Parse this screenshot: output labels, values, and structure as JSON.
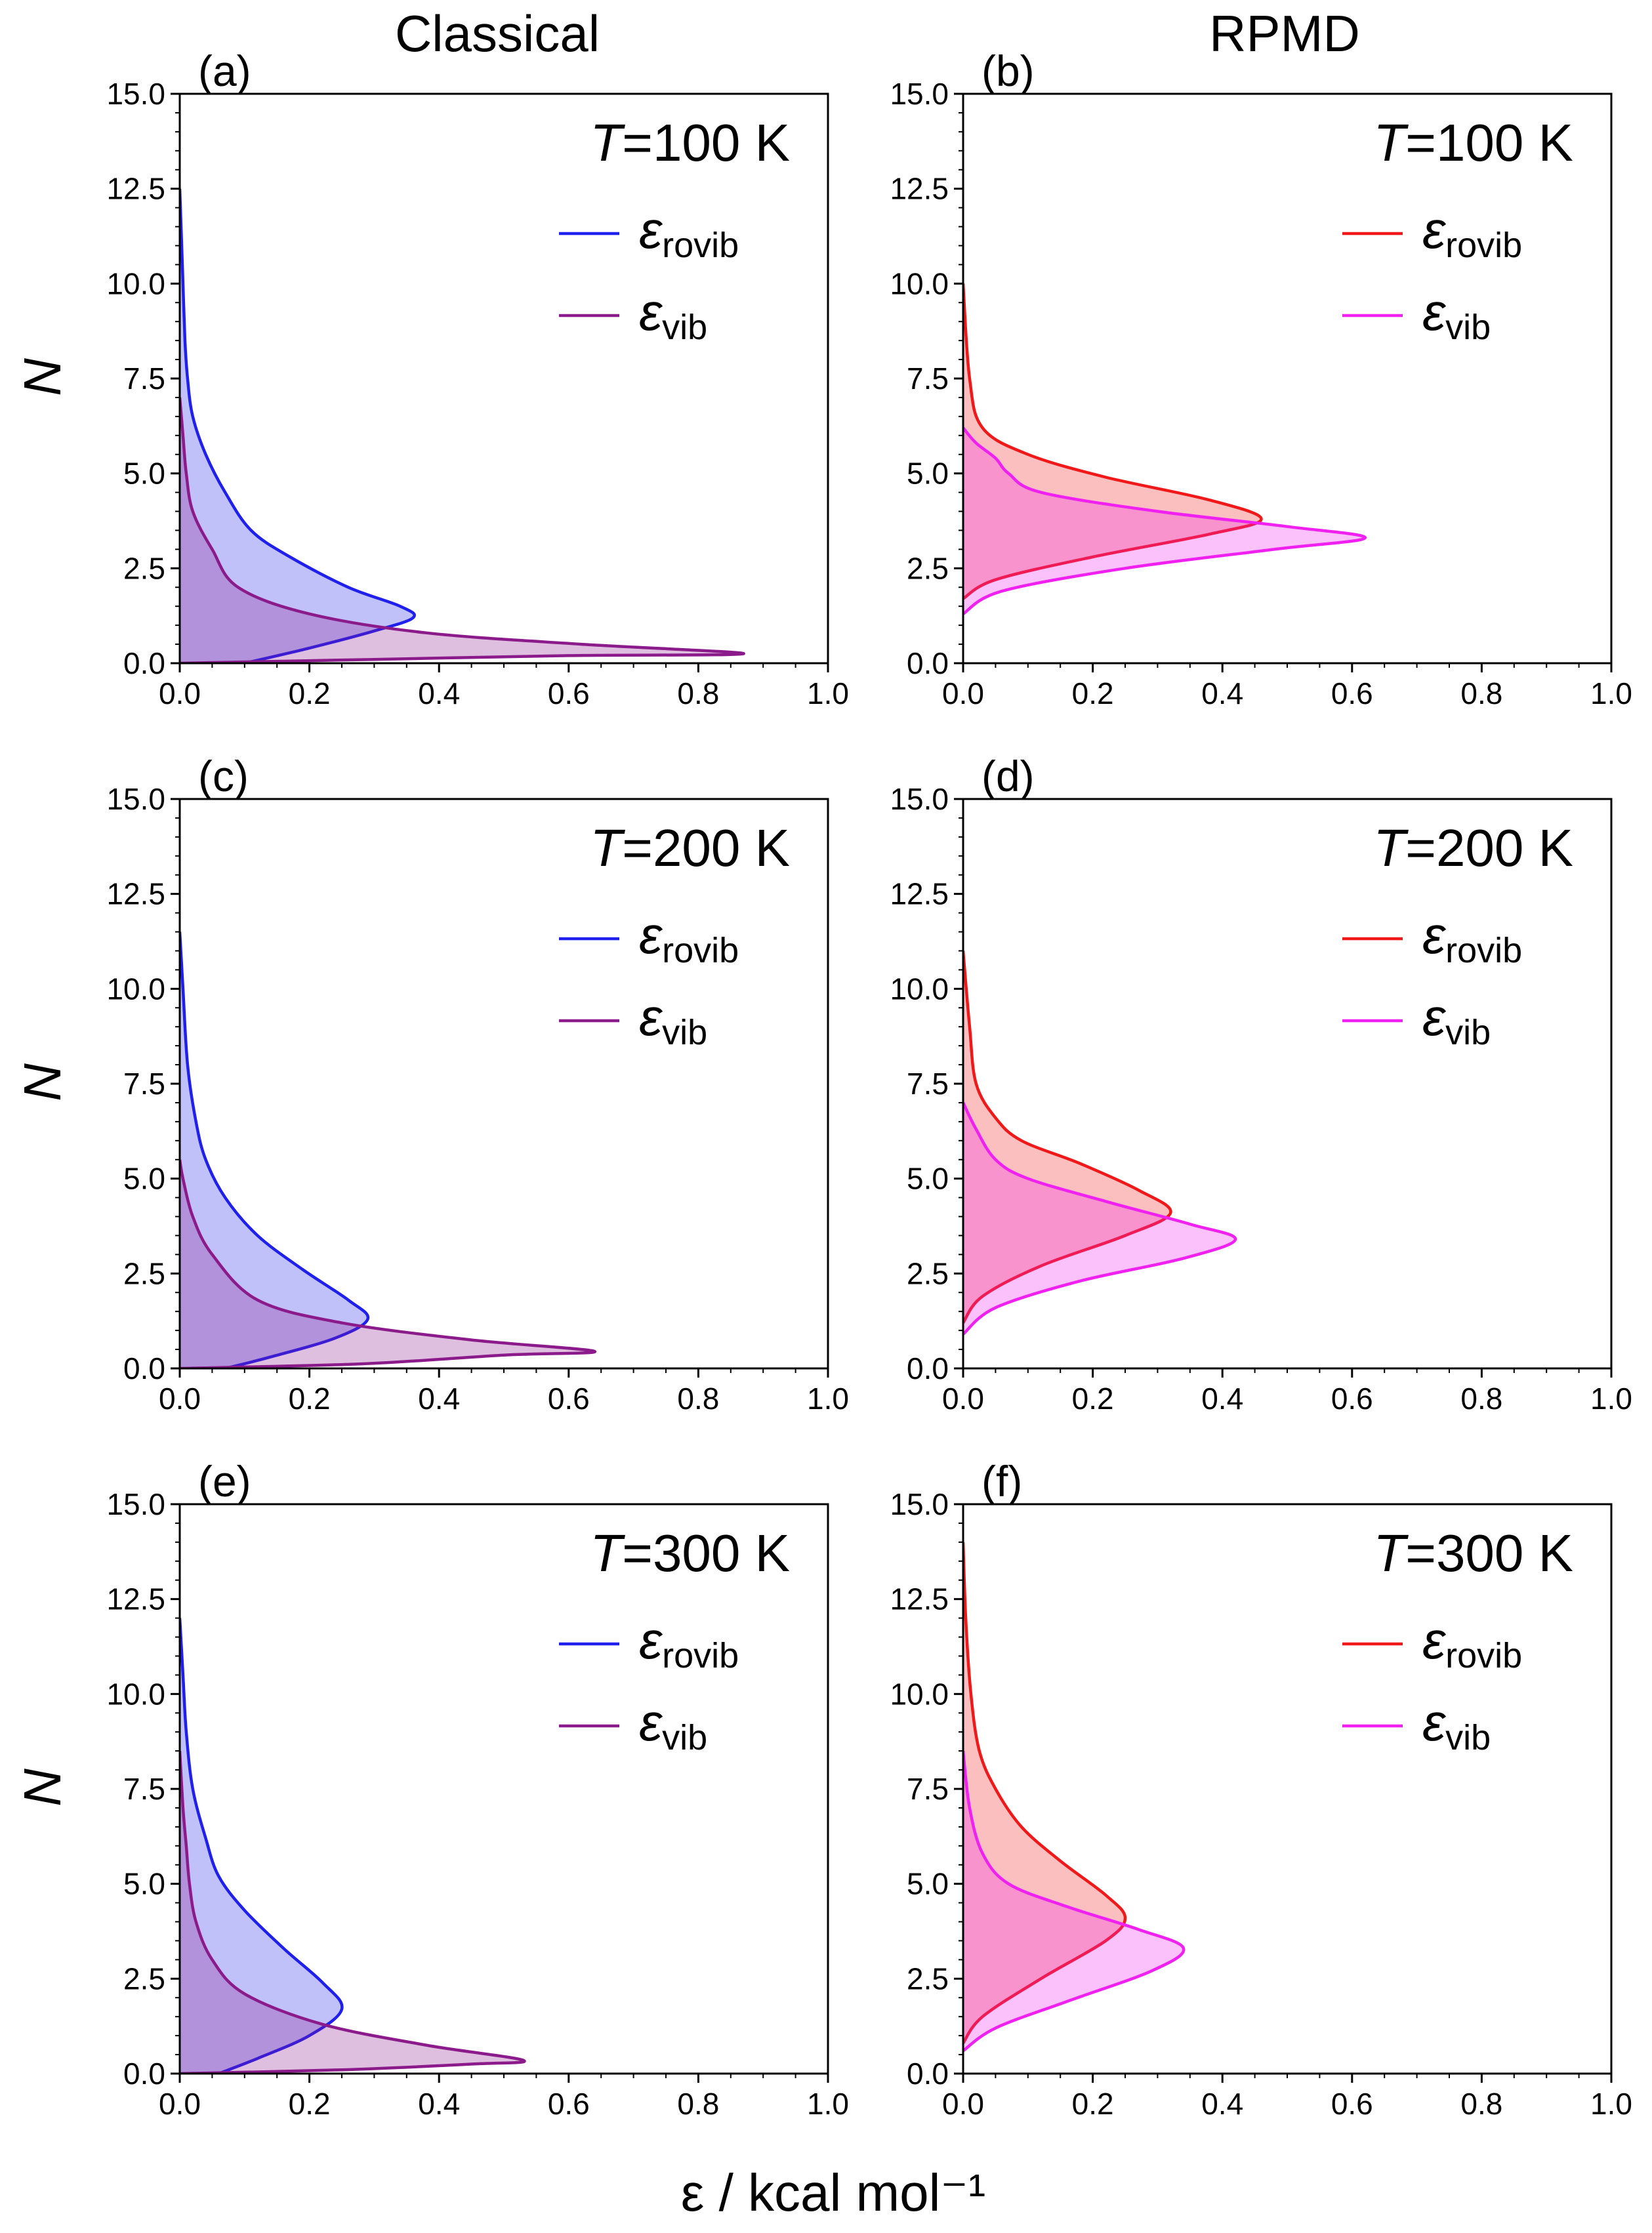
{
  "figure": {
    "col_titles": [
      "Classical",
      "RPMD"
    ],
    "xlabel": "ε / kcal mol⁻¹",
    "ylabel": "N"
  },
  "colors": {
    "classical_rovib": "#1f1fee",
    "classical_vib": "#8b1a8b",
    "rpmd_rovib": "#f01818",
    "rpmd_vib": "#f020f0"
  },
  "chart_data": [
    {
      "type": "area",
      "label": "(a)",
      "temperature": "T=100 K",
      "xlim": [
        0,
        1.0
      ],
      "ylim": [
        0,
        15.0
      ],
      "xticks": [
        "0.0",
        "0.2",
        "0.4",
        "0.6",
        "0.8",
        "1.0"
      ],
      "yticks": [
        "0.0",
        "2.5",
        "5.0",
        "7.5",
        "10.0",
        "12.5",
        "15.0"
      ],
      "legend": [
        {
          "symbol": "ε",
          "sub": "rovib"
        },
        {
          "symbol": "ε",
          "sub": "vib"
        }
      ],
      "series": [
        {
          "name": "ε_rovib",
          "color": "classical_rovib",
          "points": [
            [
              0.1,
              0
            ],
            [
              0.2,
              0.4
            ],
            [
              0.3,
              0.85
            ],
            [
              0.36,
              1.2
            ],
            [
              0.34,
              1.5
            ],
            [
              0.26,
              2.0
            ],
            [
              0.17,
              2.8
            ],
            [
              0.11,
              3.5
            ],
            [
              0.07,
              4.5
            ],
            [
              0.04,
              5.5
            ],
            [
              0.02,
              6.5
            ],
            [
              0.012,
              7.5
            ],
            [
              0.008,
              8.5
            ],
            [
              0.005,
              10
            ],
            [
              0.002,
              11.5
            ],
            [
              0,
              12.5
            ]
          ]
        },
        {
          "name": "ε_vib",
          "color": "classical_vib",
          "points": [
            [
              0,
              0
            ],
            [
              0.3,
              0.1
            ],
            [
              0.6,
              0.2
            ],
            [
              0.87,
              0.25
            ],
            [
              0.62,
              0.5
            ],
            [
              0.38,
              0.8
            ],
            [
              0.2,
              1.3
            ],
            [
              0.09,
              2.0
            ],
            [
              0.05,
              3.0
            ],
            [
              0.02,
              4.0
            ],
            [
              0.01,
              5.0
            ],
            [
              0.005,
              6
            ],
            [
              0,
              7
            ]
          ]
        }
      ]
    },
    {
      "type": "area",
      "label": "(b)",
      "temperature": "T=100 K",
      "xlim": [
        0,
        1.0
      ],
      "ylim": [
        0,
        15.0
      ],
      "xticks": [
        "0.0",
        "0.2",
        "0.4",
        "0.6",
        "0.8",
        "1.0"
      ],
      "yticks": [
        "0.0",
        "2.5",
        "5.0",
        "7.5",
        "10.0",
        "12.5",
        "15.0"
      ],
      "legend": [
        {
          "symbol": "ε",
          "sub": "rovib"
        },
        {
          "symbol": "ε",
          "sub": "vib"
        }
      ],
      "series": [
        {
          "name": "ε_rovib",
          "color": "rpmd_rovib",
          "points": [
            [
              0,
              1.7
            ],
            [
              0.05,
              2.2
            ],
            [
              0.2,
              2.8
            ],
            [
              0.38,
              3.4
            ],
            [
              0.46,
              3.8
            ],
            [
              0.38,
              4.3
            ],
            [
              0.22,
              4.9
            ],
            [
              0.1,
              5.5
            ],
            [
              0.03,
              6.2
            ],
            [
              0.01,
              7.5
            ],
            [
              0,
              10
            ]
          ]
        },
        {
          "name": "ε_vib",
          "color": "rpmd_vib",
          "points": [
            [
              0,
              1.3
            ],
            [
              0.06,
              1.9
            ],
            [
              0.25,
              2.5
            ],
            [
              0.48,
              3.0
            ],
            [
              0.62,
              3.3
            ],
            [
              0.5,
              3.6
            ],
            [
              0.3,
              4.0
            ],
            [
              0.12,
              4.5
            ],
            [
              0.07,
              5.0
            ],
            [
              0.05,
              5.4
            ],
            [
              0.02,
              5.8
            ],
            [
              0,
              6.2
            ]
          ]
        }
      ]
    },
    {
      "type": "area",
      "label": "(c)",
      "temperature": "T=200 K",
      "xlim": [
        0,
        1.0
      ],
      "ylim": [
        0,
        15.0
      ],
      "xticks": [
        "0.0",
        "0.2",
        "0.4",
        "0.6",
        "0.8",
        "1.0"
      ],
      "yticks": [
        "0.0",
        "2.5",
        "5.0",
        "7.5",
        "10.0",
        "12.5",
        "15.0"
      ],
      "legend": [
        {
          "symbol": "ε",
          "sub": "rovib"
        },
        {
          "symbol": "ε",
          "sub": "vib"
        }
      ],
      "series": [
        {
          "name": "ε_rovib",
          "color": "classical_rovib",
          "points": [
            [
              0.07,
              0
            ],
            [
              0.14,
              0.3
            ],
            [
              0.24,
              0.8
            ],
            [
              0.29,
              1.3
            ],
            [
              0.26,
              1.8
            ],
            [
              0.19,
              2.6
            ],
            [
              0.12,
              3.5
            ],
            [
              0.07,
              4.5
            ],
            [
              0.04,
              5.5
            ],
            [
              0.025,
              6.5
            ],
            [
              0.012,
              8
            ],
            [
              0.005,
              10
            ],
            [
              0,
              11.5
            ]
          ]
        },
        {
          "name": "ε_vib",
          "color": "classical_vib",
          "points": [
            [
              0,
              0
            ],
            [
              0.28,
              0.12
            ],
            [
              0.5,
              0.35
            ],
            [
              0.64,
              0.45
            ],
            [
              0.45,
              0.75
            ],
            [
              0.25,
              1.2
            ],
            [
              0.12,
              1.8
            ],
            [
              0.05,
              3.0
            ],
            [
              0.02,
              4.0
            ],
            [
              0.005,
              5.0
            ],
            [
              0,
              5.5
            ]
          ]
        }
      ]
    },
    {
      "type": "area",
      "label": "(d)",
      "temperature": "T=200 K",
      "xlim": [
        0,
        1.0
      ],
      "ylim": [
        0,
        15.0
      ],
      "xticks": [
        "0.0",
        "0.2",
        "0.4",
        "0.6",
        "0.8",
        "1.0"
      ],
      "yticks": [
        "0.0",
        "2.5",
        "5.0",
        "7.5",
        "10.0",
        "12.5",
        "15.0"
      ],
      "legend": [
        {
          "symbol": "ε",
          "sub": "rovib"
        },
        {
          "symbol": "ε",
          "sub": "vib"
        }
      ],
      "series": [
        {
          "name": "ε_rovib",
          "color": "rpmd_rovib",
          "points": [
            [
              0,
              1.2
            ],
            [
              0.03,
              1.9
            ],
            [
              0.12,
              2.7
            ],
            [
              0.25,
              3.5
            ],
            [
              0.32,
              4.1
            ],
            [
              0.27,
              4.7
            ],
            [
              0.18,
              5.4
            ],
            [
              0.09,
              6.0
            ],
            [
              0.05,
              6.6
            ],
            [
              0.02,
              7.5
            ],
            [
              0.01,
              9
            ],
            [
              0,
              11
            ]
          ]
        },
        {
          "name": "ε_vib",
          "color": "rpmd_vib",
          "points": [
            [
              0,
              0.9
            ],
            [
              0.05,
              1.6
            ],
            [
              0.18,
              2.3
            ],
            [
              0.34,
              2.9
            ],
            [
              0.42,
              3.4
            ],
            [
              0.35,
              3.8
            ],
            [
              0.22,
              4.4
            ],
            [
              0.1,
              5.0
            ],
            [
              0.05,
              5.5
            ],
            [
              0.02,
              6.3
            ],
            [
              0,
              7.0
            ]
          ]
        }
      ]
    },
    {
      "type": "area",
      "label": "(e)",
      "temperature": "T=300 K",
      "xlim": [
        0,
        1.0
      ],
      "ylim": [
        0,
        15.0
      ],
      "xticks": [
        "0.0",
        "0.2",
        "0.4",
        "0.6",
        "0.8",
        "1.0"
      ],
      "yticks": [
        "0.0",
        "2.5",
        "5.0",
        "7.5",
        "10.0",
        "12.5",
        "15.0"
      ],
      "legend": [
        {
          "symbol": "ε",
          "sub": "rovib"
        },
        {
          "symbol": "ε",
          "sub": "vib"
        }
      ],
      "series": [
        {
          "name": "ε_rovib",
          "color": "classical_rovib",
          "points": [
            [
              0.06,
              0
            ],
            [
              0.12,
              0.4
            ],
            [
              0.2,
              1.0
            ],
            [
              0.25,
              1.7
            ],
            [
              0.22,
              2.4
            ],
            [
              0.16,
              3.3
            ],
            [
              0.1,
              4.3
            ],
            [
              0.06,
              5.2
            ],
            [
              0.04,
              6.2
            ],
            [
              0.02,
              7.5
            ],
            [
              0.01,
              9
            ],
            [
              0.005,
              10.5
            ],
            [
              0,
              12
            ]
          ]
        },
        {
          "name": "ε_vib",
          "color": "classical_vib",
          "points": [
            [
              0,
              0
            ],
            [
              0.25,
              0.1
            ],
            [
              0.45,
              0.25
            ],
            [
              0.53,
              0.35
            ],
            [
              0.38,
              0.75
            ],
            [
              0.22,
              1.3
            ],
            [
              0.1,
              2.1
            ],
            [
              0.05,
              3.0
            ],
            [
              0.025,
              4.0
            ],
            [
              0.015,
              5.0
            ],
            [
              0.01,
              6.0
            ],
            [
              0.005,
              7.0
            ],
            [
              0,
              8.5
            ]
          ]
        }
      ]
    },
    {
      "type": "area",
      "label": "(f)",
      "temperature": "T=300 K",
      "xlim": [
        0,
        1.0
      ],
      "ylim": [
        0,
        15.0
      ],
      "xticks": [
        "0.0",
        "0.2",
        "0.4",
        "0.6",
        "0.8",
        "1.0"
      ],
      "yticks": [
        "0.0",
        "2.5",
        "5.0",
        "7.5",
        "10.0",
        "12.5",
        "15.0"
      ],
      "legend": [
        {
          "symbol": "ε",
          "sub": "rovib"
        },
        {
          "symbol": "ε",
          "sub": "vib"
        }
      ],
      "series": [
        {
          "name": "ε_rovib",
          "color": "rpmd_rovib",
          "points": [
            [
              0,
              0.8
            ],
            [
              0.03,
              1.5
            ],
            [
              0.12,
              2.5
            ],
            [
              0.22,
              3.5
            ],
            [
              0.25,
              4.1
            ],
            [
              0.22,
              4.7
            ],
            [
              0.15,
              5.6
            ],
            [
              0.09,
              6.5
            ],
            [
              0.05,
              7.5
            ],
            [
              0.025,
              8.5
            ],
            [
              0.012,
              10
            ],
            [
              0.004,
              12
            ],
            [
              0,
              14
            ]
          ]
        },
        {
          "name": "ε_vib",
          "color": "rpmd_vib",
          "points": [
            [
              0,
              0.6
            ],
            [
              0.05,
              1.2
            ],
            [
              0.16,
              1.9
            ],
            [
              0.29,
              2.7
            ],
            [
              0.34,
              3.3
            ],
            [
              0.27,
              3.8
            ],
            [
              0.16,
              4.4
            ],
            [
              0.07,
              5.0
            ],
            [
              0.03,
              5.8
            ],
            [
              0.01,
              7.0
            ],
            [
              0,
              8.5
            ]
          ]
        }
      ]
    }
  ]
}
